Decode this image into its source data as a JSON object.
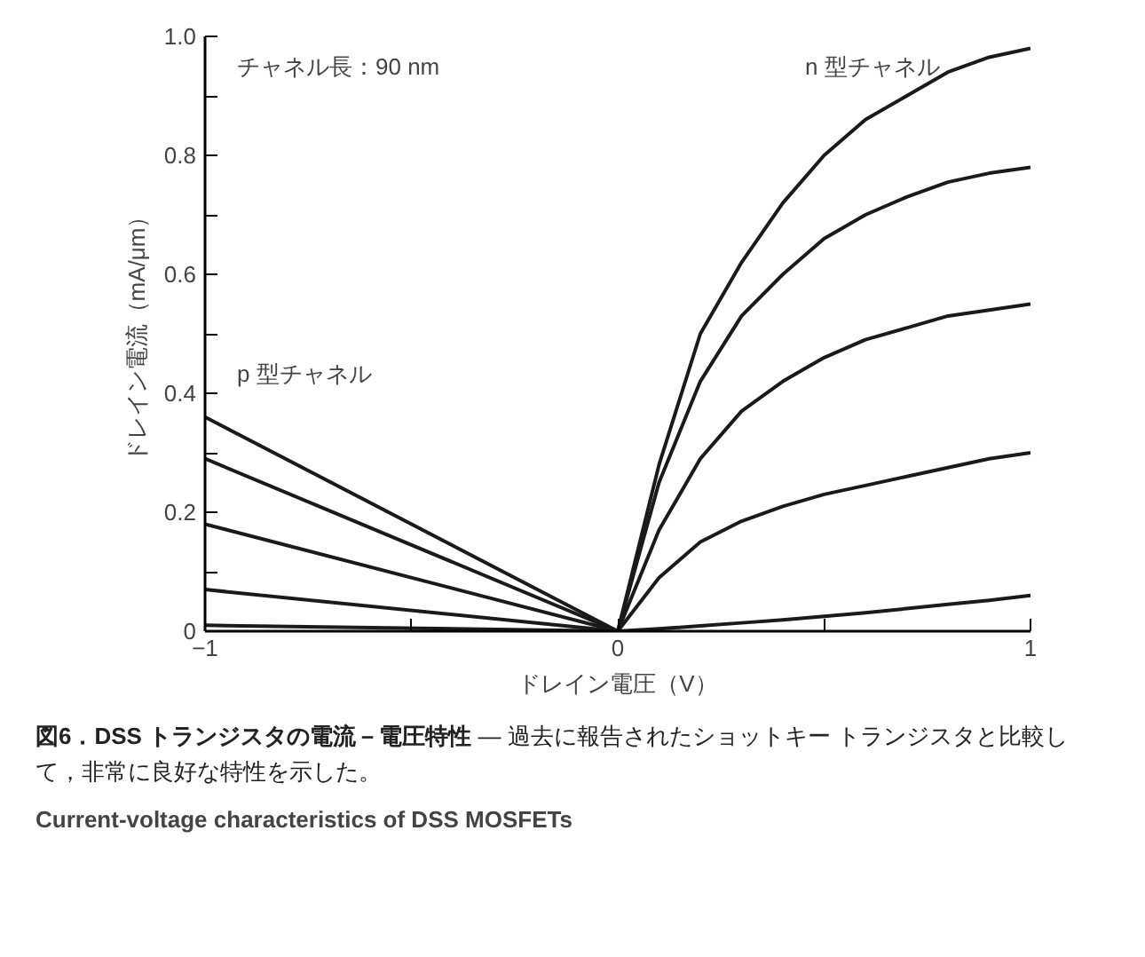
{
  "chart_data": {
    "type": "line",
    "title": "図6．DSS トランジスタの電流－電圧特性",
    "subtitle": "— 過去に報告されたショットキー トランジスタと比較して，非常に良好な特性を示した。",
    "xlabel": "ドレイン電圧（V）",
    "ylabel": "ドレイン電流（mA/μm）",
    "annotations": [
      "チャネル長：90 nm",
      "n 型チャネル",
      "p 型チャネル",
      "Current-voltage characteristics of DSS MOSFETs"
    ],
    "series": [
      {
        "color": "#1a1a1a",
        "x": [
          -1,
          0,
          0.1,
          0.2,
          0.3,
          0.4,
          0.5,
          0.6,
          0.7,
          0.8,
          0.9,
          1
        ],
        "values": [
          0.36,
          0,
          0.28,
          0.5,
          0.62,
          0.72,
          0.8,
          0.86,
          0.9,
          0.94,
          0.965,
          0.98
        ]
      },
      {
        "color": "#1a1a1a",
        "x": [
          -1,
          0,
          0.1,
          0.2,
          0.3,
          0.4,
          0.5,
          0.6,
          0.7,
          0.8,
          0.9,
          1
        ],
        "values": [
          0.29,
          0,
          0.25,
          0.42,
          0.53,
          0.6,
          0.66,
          0.7,
          0.73,
          0.755,
          0.77,
          0.78
        ]
      },
      {
        "color": "#1a1a1a",
        "x": [
          -1,
          0,
          0.1,
          0.2,
          0.3,
          0.4,
          0.5,
          0.6,
          0.7,
          0.8,
          0.9,
          1
        ],
        "values": [
          0.18,
          0,
          0.17,
          0.29,
          0.37,
          0.42,
          0.46,
          0.49,
          0.51,
          0.53,
          0.54,
          0.55
        ]
      },
      {
        "color": "#1a1a1a",
        "x": [
          -1,
          0,
          0.1,
          0.2,
          0.3,
          0.4,
          0.5,
          0.6,
          0.7,
          0.8,
          0.9,
          1
        ],
        "values": [
          0.07,
          0,
          0.09,
          0.15,
          0.185,
          0.21,
          0.23,
          0.245,
          0.26,
          0.275,
          0.29,
          0.3
        ]
      },
      {
        "color": "#1a1a1a",
        "x": [
          -1,
          0,
          0.1,
          0.2,
          0.3,
          0.4,
          0.5,
          0.6,
          0.7,
          0.8,
          0.9,
          1
        ],
        "values": [
          0.01,
          0,
          0.004,
          0.009,
          0.014,
          0.019,
          0.025,
          0.031,
          0.038,
          0.045,
          0.052,
          0.06
        ]
      }
    ],
    "xlim": [
      -1,
      1
    ],
    "ylim": [
      0,
      1.0
    ],
    "xticks": [
      {
        "value": -1,
        "label": "−1"
      },
      {
        "value": -0.5,
        "label": null
      },
      0,
      {
        "value": 0.5,
        "label": null
      },
      1
    ],
    "yticks": [
      0,
      {
        "value": 0.1,
        "label": null
      },
      0.2,
      {
        "value": 0.3,
        "label": null
      },
      0.4,
      {
        "value": 0.5,
        "label": null
      },
      0.6,
      {
        "value": 0.7,
        "label": null
      },
      0.8,
      {
        "value": 0.9,
        "label": null
      },
      {
        "value": 1.0,
        "label": "1.0"
      }
    ],
    "grid": false,
    "marker": "none",
    "line_style": "solid"
  }
}
